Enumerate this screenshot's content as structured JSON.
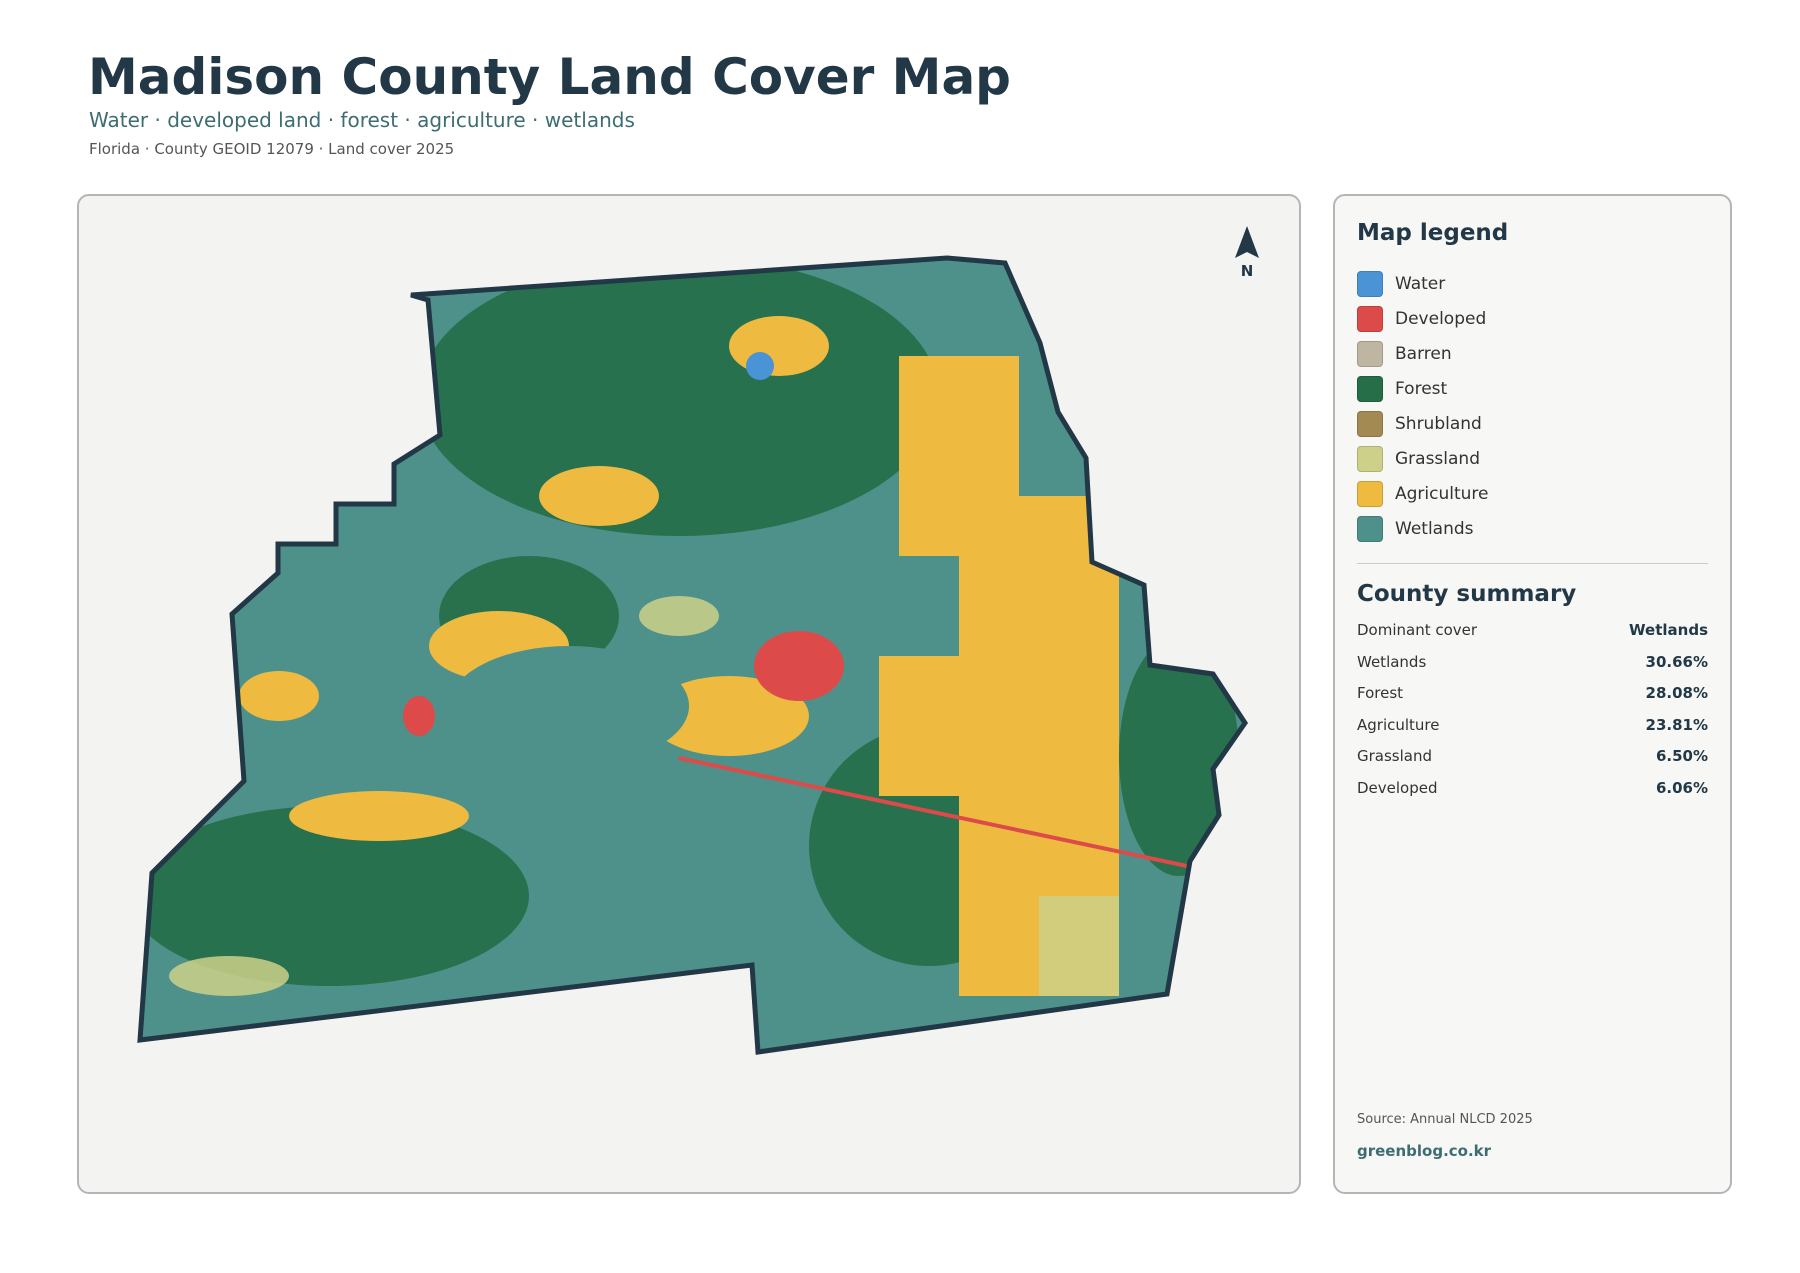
{
  "header": {
    "title": "Madison County Land Cover Map",
    "subtitle": "Water · developed land · forest · agriculture · wetlands",
    "meta": "Florida · County GEOID 12079 · Land cover 2025"
  },
  "map": {
    "north": "N"
  },
  "legend": {
    "title": "Map legend",
    "items": [
      {
        "label": "Water",
        "color": "#4a94d6"
      },
      {
        "label": "Developed",
        "color": "#dd4a4a"
      },
      {
        "label": "Barren",
        "color": "#bfb6a2"
      },
      {
        "label": "Forest",
        "color": "#256e47"
      },
      {
        "label": "Shrubland",
        "color": "#a38a53"
      },
      {
        "label": "Grassland",
        "color": "#ccd088"
      },
      {
        "label": "Agriculture",
        "color": "#eeba40"
      },
      {
        "label": "Wetlands",
        "color": "#4e918a"
      }
    ]
  },
  "summary": {
    "title": "County summary",
    "rows": [
      [
        "Dominant cover",
        "Wetlands"
      ],
      [
        "Wetlands",
        "30.66%"
      ],
      [
        "Forest",
        "28.08%"
      ],
      [
        "Agriculture",
        "23.81%"
      ],
      [
        "Grassland",
        "6.50%"
      ],
      [
        "Developed",
        "6.06%"
      ]
    ]
  },
  "source": "Source: Annual NLCD 2025",
  "credit": "greenblog.co.kr"
}
